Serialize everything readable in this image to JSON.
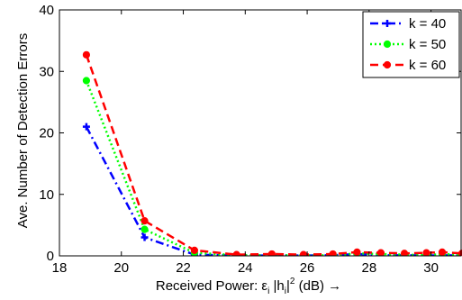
{
  "chart_data": {
    "type": "line",
    "title": "",
    "xlabel": {
      "prefix": "Received Power: ε",
      "sub1": "i",
      "mid1": " |h",
      "sub2": "i",
      "mid2": "|",
      "sup": "2",
      "suffix": " (dB) →"
    },
    "ylabel": "Ave. Number of Detection Errors",
    "xlim": [
      18,
      31
    ],
    "ylim": [
      0,
      40
    ],
    "xticks": [
      18,
      20,
      22,
      24,
      26,
      28,
      30
    ],
    "yticks": [
      0,
      10,
      20,
      30,
      40
    ],
    "grid": false,
    "legend_position": "top-right",
    "x": [
      18.87,
      20.75,
      22.36,
      23.72,
      24.86,
      25.88,
      26.83,
      27.61,
      28.38,
      29.14,
      29.85,
      30.36,
      31.0
    ],
    "series": [
      {
        "name": "k = 40",
        "color": "#0000ff",
        "line_style": "dashdot",
        "marker": "plus",
        "values": [
          21.0,
          3.0,
          0.2,
          0.05,
          0.05,
          0.05,
          0.1,
          0.3,
          0.1,
          0.1,
          0.05,
          0.1,
          0.05
        ]
      },
      {
        "name": "k = 50",
        "color": "#00ff00",
        "line_style": "dotted",
        "marker": "circle",
        "values": [
          28.5,
          4.3,
          0.5,
          0.1,
          0.1,
          0.1,
          0.1,
          0.4,
          0.3,
          0.2,
          0.1,
          0.3,
          0.2
        ]
      },
      {
        "name": "k = 60",
        "color": "#ff0000",
        "line_style": "dashed",
        "marker": "circle",
        "values": [
          32.7,
          5.7,
          0.9,
          0.2,
          0.3,
          0.2,
          0.3,
          0.6,
          0.5,
          0.4,
          0.5,
          0.6,
          0.4
        ]
      }
    ]
  }
}
